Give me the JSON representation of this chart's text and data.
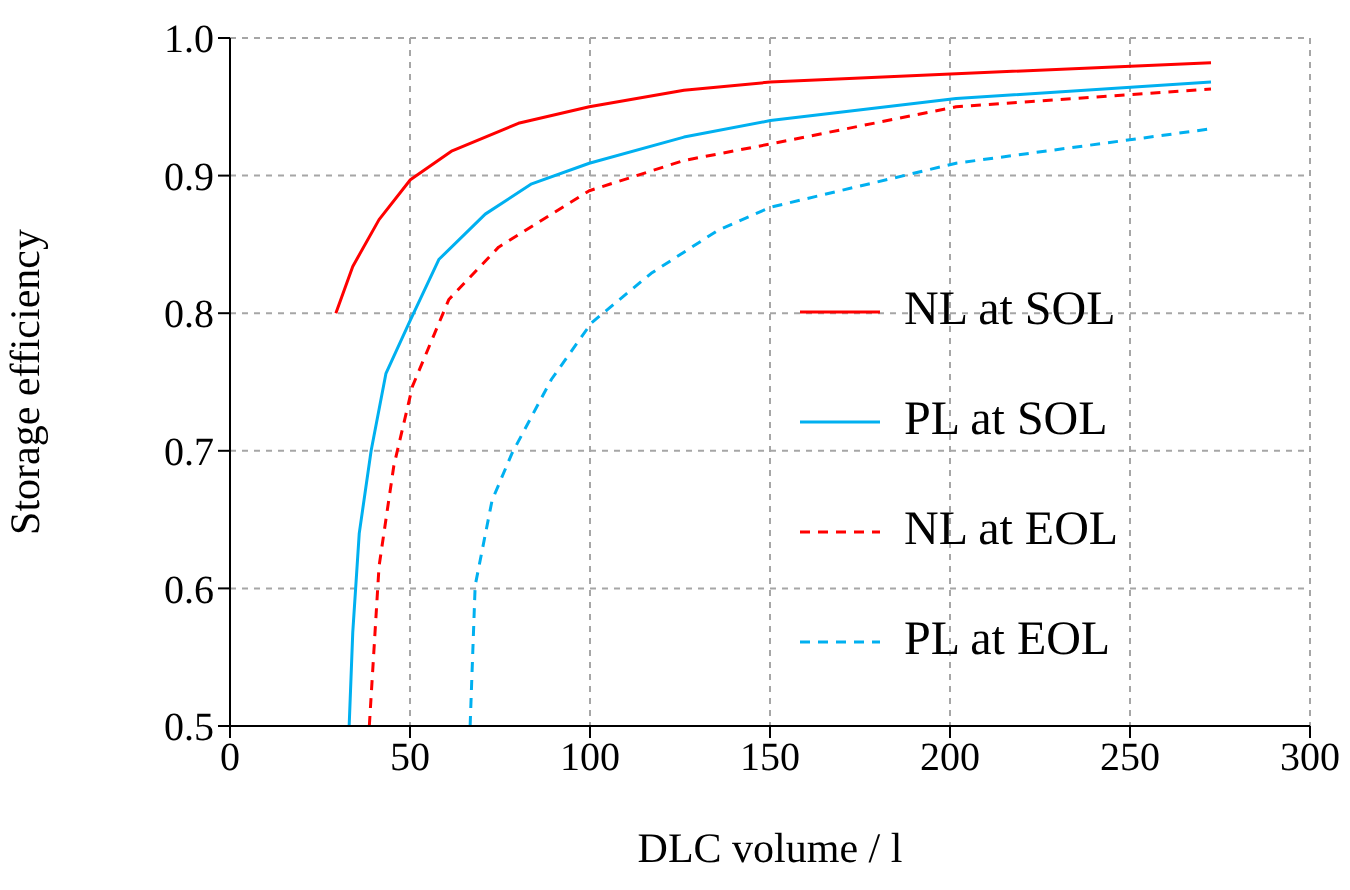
{
  "chart_data": {
    "type": "line",
    "xlabel": "DLC volume / l",
    "ylabel": "Storage efficiency",
    "xlim": [
      0,
      300
    ],
    "xticks": [
      0,
      50,
      100,
      150,
      200,
      250,
      300
    ],
    "ylim": [
      0.5,
      1.0
    ],
    "yticks": [
      {
        "value": 0.5,
        "label": "0.5"
      },
      {
        "value": 0.6,
        "label": "0.6"
      },
      {
        "value": 0.7,
        "label": "0.7"
      },
      {
        "value": 0.8,
        "label": "0.8"
      },
      {
        "value": 0.9,
        "label": "0.9"
      },
      {
        "value": 1.0,
        "label": "1.0"
      }
    ],
    "grid": true,
    "legend": "right",
    "marker": "none",
    "series": [
      {
        "name": "NL at SOL",
        "color": "#ff0000",
        "line_style": "solid",
        "x": [
          29.4,
          34.1,
          41.4,
          50.1,
          61.7,
          80.1,
          99.8,
          126.1,
          150.1,
          201.7,
          272.5
        ],
        "values": [
          0.8,
          0.834,
          0.868,
          0.897,
          0.918,
          0.938,
          0.95,
          0.962,
          0.968,
          0.974,
          0.982
        ]
      },
      {
        "name": "PL at SOL",
        "color": "#00b0f0",
        "line_style": "solid",
        "x": [
          33.1,
          34.1,
          35.9,
          39.2,
          43.3,
          50.1,
          58,
          70.9,
          83.8,
          99.8,
          126.1,
          150.1,
          201.7,
          272.5
        ],
        "values": [
          0.5,
          0.568,
          0.64,
          0.7,
          0.756,
          0.795,
          0.839,
          0.872,
          0.894,
          0.909,
          0.928,
          0.94,
          0.956,
          0.968
        ]
      },
      {
        "name": "NL at EOL",
        "color": "#ff0000",
        "line_style": "dashed",
        "x": [
          38.7,
          41.4,
          45.5,
          50.7,
          60.8,
          74.6,
          99.8,
          126.1,
          150.1,
          201.7,
          272.5
        ],
        "values": [
          0.5,
          0.616,
          0.689,
          0.747,
          0.81,
          0.848,
          0.889,
          0.911,
          0.923,
          0.95,
          0.963
        ]
      },
      {
        "name": "PL at EOL",
        "color": "#00b0f0",
        "line_style": "dashed",
        "x": [
          66.7,
          68.1,
          72.8,
          78.3,
          89.3,
          100.4,
          117,
          135.4,
          150.1,
          201.7,
          272.5
        ],
        "values": [
          0.5,
          0.602,
          0.664,
          0.698,
          0.752,
          0.793,
          0.829,
          0.86,
          0.877,
          0.909,
          0.934
        ]
      }
    ]
  }
}
